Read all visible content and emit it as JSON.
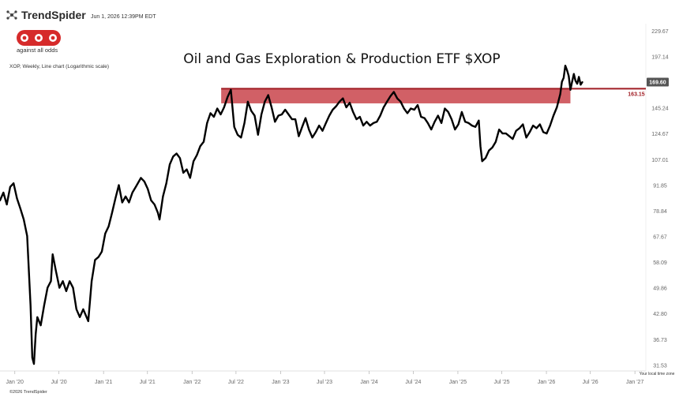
{
  "header": {
    "brand": "TrendSpider",
    "datetime": "Jun 1, 2026 12:39PM EDT",
    "logo_text": "aao",
    "logo_tagline": "against all odds",
    "subtitle": "XOP, Weekly, Line chart (Logarithmic scale)",
    "footer": "©2026 TrendSpider",
    "timezone_note": "Your local time zone",
    "logo_color": "#d62b2b"
  },
  "chart_data": {
    "type": "line",
    "title": "Oil and Gas Exploration & Production ETF $XOP",
    "y_scale": "log",
    "ylim": [
      30.5,
      240
    ],
    "y_ticks": [
      229.67,
      197.14,
      169.21,
      145.24,
      124.67,
      107.01,
      91.85,
      78.84,
      67.67,
      58.09,
      49.86,
      42.8,
      36.73,
      31.53
    ],
    "y_tick_labels": [
      "229.67",
      "197.14",
      "",
      "145.24",
      "124.67",
      "107.01",
      "91.85",
      "78.84",
      "67.67",
      "58.09",
      "49.86",
      "42.80",
      "36.73",
      "31.53"
    ],
    "xlim": [
      "2019-11-01",
      "2027-02-15"
    ],
    "x_ticks": [
      "2020-01-01",
      "2020-07-01",
      "2021-01-01",
      "2021-07-01",
      "2022-01-01",
      "2022-07-01",
      "2023-01-01",
      "2023-07-01",
      "2024-01-01",
      "2024-07-01",
      "2025-01-01",
      "2025-07-01",
      "2026-01-01",
      "2026-07-01",
      "2027-01-01"
    ],
    "x_tick_labels": [
      "Jan '20",
      "Jul '20",
      "Jan '21",
      "Jul '21",
      "Jan '22",
      "Jul '22",
      "Jan '23",
      "Jul '23",
      "Jan '24",
      "Jul '24",
      "Jan '25",
      "Jul '25",
      "Jan '26",
      "Jul '26",
      "Jan '27"
    ],
    "last_price": 169.6,
    "last_price_label": "169.60",
    "level": 163.15,
    "level_label": "163.15",
    "zone": {
      "low": 149.5,
      "high": 163.15,
      "start": "2022-05-01",
      "end": "2026-04-10"
    },
    "series": [
      {
        "color": "#000000",
        "points": [
          [
            "2019-11-01",
            84
          ],
          [
            "2019-11-15",
            88
          ],
          [
            "2019-11-29",
            82
          ],
          [
            "2019-12-13",
            91
          ],
          [
            "2019-12-27",
            93
          ],
          [
            "2020-01-10",
            85
          ],
          [
            "2020-01-24",
            80
          ],
          [
            "2020-02-07",
            75
          ],
          [
            "2020-02-21",
            68
          ],
          [
            "2020-03-06",
            45
          ],
          [
            "2020-03-13",
            33
          ],
          [
            "2020-03-20",
            31.8
          ],
          [
            "2020-03-27",
            38
          ],
          [
            "2020-04-03",
            42
          ],
          [
            "2020-04-17",
            40
          ],
          [
            "2020-05-01",
            45
          ],
          [
            "2020-05-15",
            50
          ],
          [
            "2020-05-29",
            52
          ],
          [
            "2020-06-05",
            61
          ],
          [
            "2020-06-19",
            55
          ],
          [
            "2020-07-03",
            50
          ],
          [
            "2020-07-17",
            52
          ],
          [
            "2020-07-31",
            49
          ],
          [
            "2020-08-14",
            52
          ],
          [
            "2020-08-28",
            50
          ],
          [
            "2020-09-11",
            44
          ],
          [
            "2020-09-25",
            42
          ],
          [
            "2020-10-09",
            44
          ],
          [
            "2020-10-30",
            41
          ],
          [
            "2020-11-13",
            52
          ],
          [
            "2020-11-27",
            59
          ],
          [
            "2020-12-11",
            60
          ],
          [
            "2020-12-25",
            62
          ],
          [
            "2021-01-08",
            69
          ],
          [
            "2021-01-22",
            72
          ],
          [
            "2021-02-05",
            78
          ],
          [
            "2021-02-19",
            85
          ],
          [
            "2021-03-05",
            92
          ],
          [
            "2021-03-19",
            83
          ],
          [
            "2021-04-02",
            86
          ],
          [
            "2021-04-16",
            83
          ],
          [
            "2021-04-30",
            88
          ],
          [
            "2021-05-14",
            91
          ],
          [
            "2021-06-04",
            96
          ],
          [
            "2021-06-18",
            94
          ],
          [
            "2021-07-02",
            90
          ],
          [
            "2021-07-16",
            84
          ],
          [
            "2021-07-30",
            82
          ],
          [
            "2021-08-13",
            78
          ],
          [
            "2021-08-20",
            75
          ],
          [
            "2021-09-03",
            86
          ],
          [
            "2021-09-17",
            93
          ],
          [
            "2021-10-01",
            104
          ],
          [
            "2021-10-15",
            109
          ],
          [
            "2021-10-29",
            111
          ],
          [
            "2021-11-12",
            108
          ],
          [
            "2021-11-26",
            99
          ],
          [
            "2021-12-10",
            101
          ],
          [
            "2021-12-24",
            96
          ],
          [
            "2022-01-07",
            106
          ],
          [
            "2022-01-21",
            110
          ],
          [
            "2022-02-04",
            116
          ],
          [
            "2022-02-18",
            119
          ],
          [
            "2022-03-04",
            133
          ],
          [
            "2022-03-18",
            141
          ],
          [
            "2022-04-01",
            138
          ],
          [
            "2022-04-15",
            145
          ],
          [
            "2022-04-29",
            140
          ],
          [
            "2022-05-13",
            146
          ],
          [
            "2022-05-27",
            155
          ],
          [
            "2022-06-10",
            162
          ],
          [
            "2022-06-24",
            130
          ],
          [
            "2022-07-08",
            124
          ],
          [
            "2022-07-22",
            122
          ],
          [
            "2022-08-05",
            133
          ],
          [
            "2022-08-19",
            151
          ],
          [
            "2022-09-02",
            143
          ],
          [
            "2022-09-16",
            139
          ],
          [
            "2022-09-30",
            124
          ],
          [
            "2022-10-14",
            140
          ],
          [
            "2022-10-28",
            151
          ],
          [
            "2022-11-11",
            157
          ],
          [
            "2022-11-25",
            146
          ],
          [
            "2022-12-09",
            134
          ],
          [
            "2022-12-23",
            139
          ],
          [
            "2023-01-06",
            140
          ],
          [
            "2023-01-20",
            144
          ],
          [
            "2023-02-03",
            140
          ],
          [
            "2023-02-17",
            136
          ],
          [
            "2023-03-03",
            136
          ],
          [
            "2023-03-17",
            123
          ],
          [
            "2023-03-31",
            130
          ],
          [
            "2023-04-14",
            137
          ],
          [
            "2023-04-28",
            128
          ],
          [
            "2023-05-12",
            122
          ],
          [
            "2023-05-26",
            126
          ],
          [
            "2023-06-09",
            131
          ],
          [
            "2023-06-23",
            127
          ],
          [
            "2023-07-07",
            133
          ],
          [
            "2023-07-21",
            139
          ],
          [
            "2023-08-04",
            144
          ],
          [
            "2023-08-18",
            147
          ],
          [
            "2023-09-01",
            151
          ],
          [
            "2023-09-15",
            154
          ],
          [
            "2023-09-29",
            146
          ],
          [
            "2023-10-13",
            150
          ],
          [
            "2023-10-27",
            142
          ],
          [
            "2023-11-10",
            136
          ],
          [
            "2023-11-24",
            138
          ],
          [
            "2023-12-08",
            131
          ],
          [
            "2023-12-22",
            134
          ],
          [
            "2024-01-05",
            131
          ],
          [
            "2024-01-19",
            133
          ],
          [
            "2024-02-02",
            134
          ],
          [
            "2024-02-16",
            139
          ],
          [
            "2024-03-01",
            146
          ],
          [
            "2024-03-15",
            151
          ],
          [
            "2024-03-29",
            156
          ],
          [
            "2024-04-12",
            160
          ],
          [
            "2024-04-26",
            154
          ],
          [
            "2024-05-10",
            151
          ],
          [
            "2024-05-24",
            145
          ],
          [
            "2024-06-07",
            141
          ],
          [
            "2024-06-21",
            145
          ],
          [
            "2024-07-05",
            144
          ],
          [
            "2024-07-19",
            148
          ],
          [
            "2024-08-02",
            138
          ],
          [
            "2024-08-16",
            137
          ],
          [
            "2024-08-30",
            133
          ],
          [
            "2024-09-13",
            128
          ],
          [
            "2024-09-27",
            134
          ],
          [
            "2024-10-11",
            139
          ],
          [
            "2024-10-25",
            133
          ],
          [
            "2024-11-08",
            145
          ],
          [
            "2024-11-22",
            142
          ],
          [
            "2024-12-06",
            136
          ],
          [
            "2024-12-20",
            128
          ],
          [
            "2025-01-03",
            132
          ],
          [
            "2025-01-17",
            142
          ],
          [
            "2025-01-31",
            134
          ],
          [
            "2025-02-14",
            133
          ],
          [
            "2025-02-28",
            131
          ],
          [
            "2025-03-14",
            130
          ],
          [
            "2025-03-28",
            135
          ],
          [
            "2025-04-04",
            116
          ],
          [
            "2025-04-11",
            106
          ],
          [
            "2025-04-25",
            108
          ],
          [
            "2025-05-09",
            113
          ],
          [
            "2025-05-23",
            115
          ],
          [
            "2025-06-06",
            119
          ],
          [
            "2025-06-20",
            128
          ],
          [
            "2025-07-04",
            125
          ],
          [
            "2025-07-18",
            125
          ],
          [
            "2025-08-01",
            123
          ],
          [
            "2025-08-15",
            121
          ],
          [
            "2025-08-29",
            127
          ],
          [
            "2025-09-12",
            129
          ],
          [
            "2025-09-26",
            132
          ],
          [
            "2025-10-10",
            122
          ],
          [
            "2025-10-24",
            126
          ],
          [
            "2025-11-07",
            131
          ],
          [
            "2025-11-21",
            129
          ],
          [
            "2025-12-05",
            132
          ],
          [
            "2025-12-19",
            126
          ],
          [
            "2026-01-02",
            125
          ],
          [
            "2026-01-16",
            131
          ],
          [
            "2026-01-30",
            139
          ],
          [
            "2026-02-13",
            146
          ],
          [
            "2026-02-27",
            158
          ],
          [
            "2026-03-06",
            170
          ],
          [
            "2026-03-13",
            174
          ],
          [
            "2026-03-20",
            187
          ],
          [
            "2026-03-27",
            182
          ],
          [
            "2026-04-03",
            176
          ],
          [
            "2026-04-10",
            162
          ],
          [
            "2026-04-17",
            170
          ],
          [
            "2026-04-24",
            178
          ],
          [
            "2026-05-01",
            171
          ],
          [
            "2026-05-08",
            168
          ],
          [
            "2026-05-15",
            175
          ],
          [
            "2026-05-22",
            167
          ],
          [
            "2026-05-29",
            169.6
          ]
        ]
      }
    ]
  }
}
